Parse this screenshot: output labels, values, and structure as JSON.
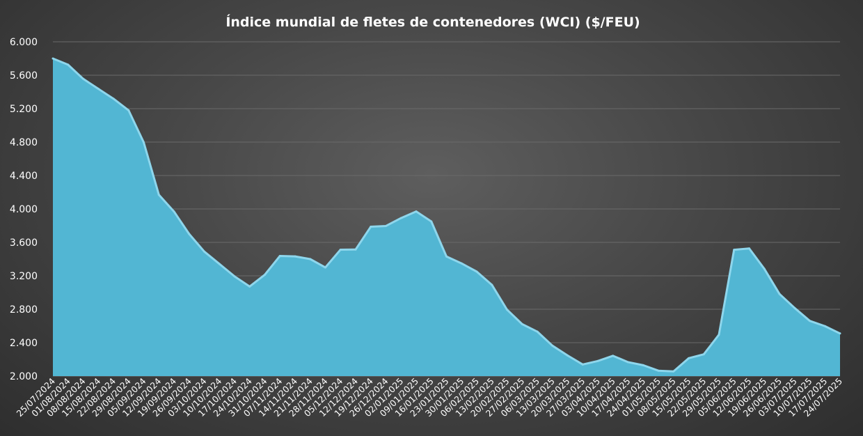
{
  "chart_data": {
    "type": "area",
    "title": "Índice mundial de fletes de contenedores (WCI) ($/FEU)",
    "xlabel": "",
    "ylabel": "",
    "ylim": [
      2000,
      6000
    ],
    "yticks": [
      2000,
      2400,
      2800,
      3200,
      3600,
      4000,
      4400,
      4800,
      5200,
      5600,
      6000
    ],
    "ytick_labels": [
      "2.000",
      "2.400",
      "2.800",
      "3.200",
      "3.600",
      "4.000",
      "4.400",
      "4.800",
      "5.200",
      "5.600",
      "6.000"
    ],
    "grid": true,
    "legend": "none",
    "fill_color": "#52b6d3",
    "edge_color": "#8ed6ec",
    "categories": [
      "25/07/2024",
      "01/08/2024",
      "08/08/2024",
      "15/08/2024",
      "22/08/2024",
      "29/08/2024",
      "05/09/2024",
      "12/09/2024",
      "19/09/2024",
      "26/09/2024",
      "03/10/2024",
      "10/10/2024",
      "17/10/2024",
      "24/10/2024",
      "31/10/2024",
      "07/11/2024",
      "14/11/2024",
      "21/11/2024",
      "28/11/2024",
      "05/12/2024",
      "12/12/2024",
      "19/12/2024",
      "26/12/2024",
      "02/01/2025",
      "09/01/2025",
      "16/01/2025",
      "23/01/2025",
      "30/01/2025",
      "06/02/2025",
      "13/02/2025",
      "20/02/2025",
      "27/02/2025",
      "06/03/2025",
      "13/03/2025",
      "20/03/2025",
      "27/03/2025",
      "03/04/2025",
      "10/04/2025",
      "17/04/2025",
      "24/04/2025",
      "01/05/2025",
      "08/05/2025",
      "15/05/2025",
      "22/05/2025",
      "29/05/2025",
      "05/06/2025",
      "12/06/2025",
      "19/06/2025",
      "26/06/2025",
      "03/07/2025",
      "10/07/2025",
      "17/07/2025",
      "24/07/2025"
    ],
    "series": [
      {
        "values": [
          5800,
          5726,
          5557,
          5437,
          5319,
          5180,
          4797,
          4170,
          3969,
          3701,
          3490,
          3342,
          3193,
          3072,
          3213,
          3438,
          3432,
          3400,
          3300,
          3513,
          3515,
          3787,
          3796,
          3891,
          3970,
          3850,
          3431,
          3348,
          3250,
          3092,
          2795,
          2622,
          2532,
          2364,
          2247,
          2139,
          2181,
          2243,
          2167,
          2130,
          2065,
          2056,
          2214,
          2261,
          2496,
          3511,
          3527,
          3283,
          2983,
          2815,
          2661,
          2598,
          2510
        ]
      }
    ]
  }
}
